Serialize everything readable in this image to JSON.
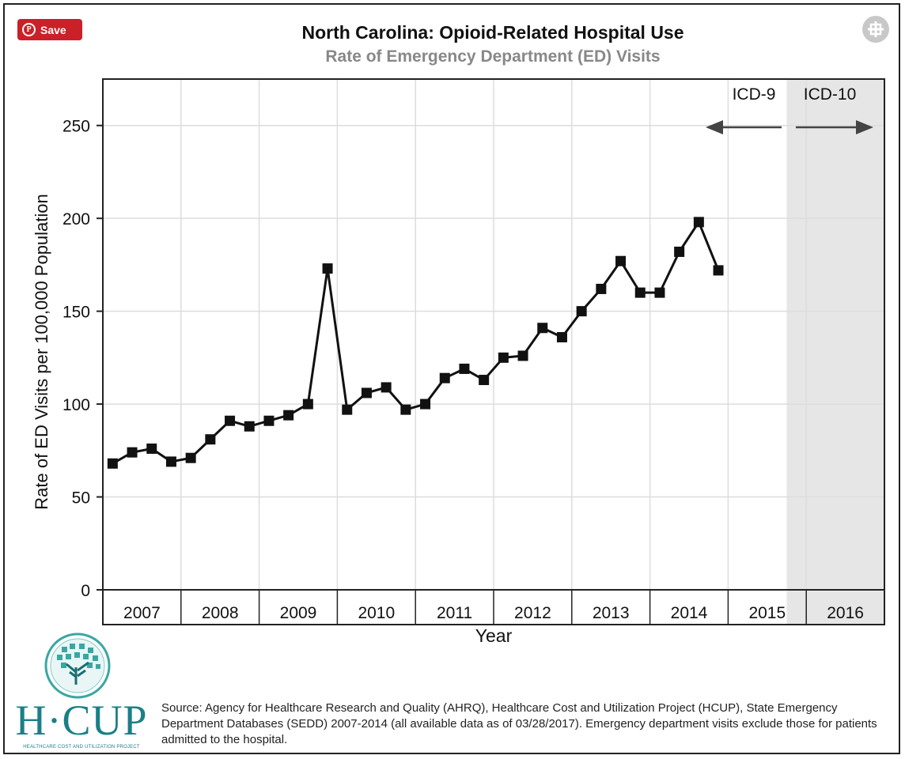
{
  "header": {
    "save_label": "Save",
    "title": "North Carolina: Opioid-Related Hospital Use",
    "subtitle": "Rate of Emergency Department (ED) Visits",
    "save_icon": "pinterest-icon",
    "expand_icon": "expand-icon"
  },
  "chart_data": {
    "type": "line",
    "title": "North Carolina: Opioid-Related Hospital Use",
    "subtitle": "Rate of Emergency Department (ED) Visits",
    "xlabel": "Year",
    "ylabel": "Rate of ED Visits per 100,000 Population",
    "x_tick_labels": [
      "2007",
      "2008",
      "2009",
      "2010",
      "2011",
      "2012",
      "2013",
      "2014",
      "2015",
      "2016"
    ],
    "y_ticks": [
      0,
      50,
      100,
      150,
      200,
      250
    ],
    "ylim": [
      0,
      275
    ],
    "xlim": [
      "2007",
      "2016"
    ],
    "grid": true,
    "series": [
      {
        "marker": "square",
        "color": "#111111",
        "x": [
          "2007 Q1",
          "2007 Q2",
          "2007 Q3",
          "2007 Q4",
          "2008 Q1",
          "2008 Q2",
          "2008 Q3",
          "2008 Q4",
          "2009 Q1",
          "2009 Q2",
          "2009 Q3",
          "2009 Q4",
          "2010 Q1",
          "2010 Q2",
          "2010 Q3",
          "2010 Q4",
          "2011 Q1",
          "2011 Q2",
          "2011 Q3",
          "2011 Q4",
          "2012 Q1",
          "2012 Q2",
          "2012 Q3",
          "2012 Q4",
          "2013 Q1",
          "2013 Q2",
          "2013 Q3",
          "2013 Q4",
          "2014 Q1",
          "2014 Q2",
          "2014 Q3",
          "2014 Q4"
        ],
        "values": [
          68,
          74,
          76,
          69,
          71,
          81,
          91,
          88,
          91,
          94,
          100,
          173,
          97,
          106,
          109,
          97,
          100,
          114,
          119,
          113,
          125,
          126,
          141,
          136,
          150,
          162,
          177,
          160,
          160,
          182,
          198,
          172
        ]
      }
    ],
    "annotations": {
      "icd9_label": "ICD-9",
      "icd10_label": "ICD-10",
      "shaded_region_start": "2015 Q4",
      "shaded_region_end": "2016 Q4",
      "shade_color": "#e6e6e6"
    }
  },
  "footer": {
    "logo_text": "H·CUP",
    "logo_tagline": "HEALTHCARE COST AND UTILIZATION PROJECT",
    "source_text": "Source: Agency for Healthcare Research and Quality (AHRQ), Healthcare Cost and Utilization Project (HCUP), State Emergency Department Databases (SEDD) 2007-2014 (all available data as of 03/28/2017). Emergency department visits exclude those for patients admitted to the hospital."
  }
}
